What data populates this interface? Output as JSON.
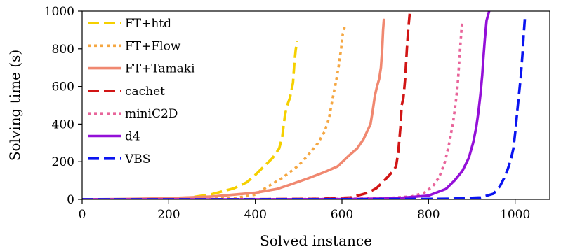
{
  "chart_data": {
    "type": "line",
    "title": "",
    "xlabel": "Solved instance",
    "ylabel": "Solving time (s)",
    "xlim": [
      0,
      1080
    ],
    "ylim": [
      0,
      1000
    ],
    "xticks": [
      0,
      200,
      400,
      600,
      800,
      1000
    ],
    "yticks": [
      0,
      200,
      400,
      600,
      800,
      1000
    ],
    "xtick_labels": [
      "0",
      "200",
      "400",
      "600",
      "800",
      "1000"
    ],
    "ytick_labels": [
      "0",
      "200",
      "400",
      "600",
      "800",
      "1000"
    ],
    "grid": false,
    "legend_position": "top-left",
    "series": [
      {
        "name": "FT+htd",
        "color": "#f5d000",
        "dash": "dashed",
        "points": [
          [
            0,
            0
          ],
          [
            100,
            1
          ],
          [
            200,
            4
          ],
          [
            250,
            10
          ],
          [
            300,
            28
          ],
          [
            350,
            58
          ],
          [
            380,
            90
          ],
          [
            400,
            130
          ],
          [
            420,
            175
          ],
          [
            440,
            220
          ],
          [
            455,
            270
          ],
          [
            462,
            330
          ],
          [
            468,
            440
          ],
          [
            472,
            490
          ],
          [
            480,
            540
          ],
          [
            487,
            620
          ],
          [
            490,
            720
          ],
          [
            493,
            790
          ],
          [
            496,
            840
          ]
        ]
      },
      {
        "name": "FT+Flow",
        "color": "#f5a742",
        "dash": "dotted",
        "points": [
          [
            0,
            0
          ],
          [
            200,
            2
          ],
          [
            350,
            6
          ],
          [
            400,
            25
          ],
          [
            430,
            70
          ],
          [
            460,
            110
          ],
          [
            500,
            180
          ],
          [
            520,
            230
          ],
          [
            545,
            300
          ],
          [
            560,
            360
          ],
          [
            570,
            430
          ],
          [
            578,
            530
          ],
          [
            585,
            610
          ],
          [
            592,
            700
          ],
          [
            598,
            800
          ],
          [
            602,
            880
          ],
          [
            608,
            930
          ]
        ]
      },
      {
        "name": "FT+Tamaki",
        "color": "#f08870",
        "dash": "solid",
        "points": [
          [
            0,
            0
          ],
          [
            100,
            2
          ],
          [
            200,
            6
          ],
          [
            300,
            15
          ],
          [
            400,
            35
          ],
          [
            450,
            55
          ],
          [
            480,
            78
          ],
          [
            520,
            110
          ],
          [
            560,
            145
          ],
          [
            590,
            175
          ],
          [
            615,
            230
          ],
          [
            635,
            270
          ],
          [
            650,
            320
          ],
          [
            660,
            370
          ],
          [
            666,
            400
          ],
          [
            671,
            470
          ],
          [
            676,
            550
          ],
          [
            681,
            600
          ],
          [
            686,
            640
          ],
          [
            690,
            700
          ],
          [
            693,
            800
          ],
          [
            695,
            900
          ],
          [
            697,
            960
          ]
        ]
      },
      {
        "name": "cachet",
        "color": "#d11515",
        "dash": "dashed",
        "points": [
          [
            0,
            0
          ],
          [
            200,
            0
          ],
          [
            400,
            1
          ],
          [
            550,
            3
          ],
          [
            620,
            10
          ],
          [
            660,
            35
          ],
          [
            680,
            60
          ],
          [
            700,
            105
          ],
          [
            718,
            150
          ],
          [
            725,
            175
          ],
          [
            730,
            250
          ],
          [
            735,
            380
          ],
          [
            738,
            500
          ],
          [
            742,
            540
          ],
          [
            746,
            640
          ],
          [
            750,
            800
          ],
          [
            753,
            900
          ],
          [
            757,
            1000
          ]
        ]
      },
      {
        "name": "miniC2D",
        "color": "#e8649a",
        "dash": "dotted",
        "points": [
          [
            0,
            0
          ],
          [
            300,
            0
          ],
          [
            600,
            2
          ],
          [
            700,
            6
          ],
          [
            760,
            15
          ],
          [
            790,
            35
          ],
          [
            810,
            70
          ],
          [
            825,
            120
          ],
          [
            838,
            200
          ],
          [
            848,
            300
          ],
          [
            856,
            400
          ],
          [
            862,
            500
          ],
          [
            867,
            600
          ],
          [
            870,
            700
          ],
          [
            873,
            800
          ],
          [
            876,
            900
          ],
          [
            878,
            950
          ]
        ]
      },
      {
        "name": "d4",
        "color": "#9410d8",
        "dash": "solid",
        "points": [
          [
            0,
            0
          ],
          [
            300,
            0
          ],
          [
            600,
            1
          ],
          [
            720,
            5
          ],
          [
            800,
            20
          ],
          [
            840,
            55
          ],
          [
            860,
            100
          ],
          [
            878,
            150
          ],
          [
            893,
            220
          ],
          [
            903,
            300
          ],
          [
            910,
            380
          ],
          [
            915,
            460
          ],
          [
            920,
            560
          ],
          [
            924,
            660
          ],
          [
            927,
            760
          ],
          [
            930,
            850
          ],
          [
            934,
            950
          ],
          [
            940,
            1000
          ]
        ]
      },
      {
        "name": "VBS",
        "color": "#0a14f0",
        "dash": "dashed",
        "points": [
          [
            0,
            0
          ],
          [
            400,
            0
          ],
          [
            700,
            1
          ],
          [
            850,
            3
          ],
          [
            920,
            10
          ],
          [
            950,
            30
          ],
          [
            965,
            70
          ],
          [
            975,
            115
          ],
          [
            983,
            160
          ],
          [
            990,
            210
          ],
          [
            996,
            270
          ],
          [
            1001,
            370
          ],
          [
            1005,
            470
          ],
          [
            1009,
            560
          ],
          [
            1013,
            650
          ],
          [
            1017,
            770
          ],
          [
            1020,
            880
          ],
          [
            1023,
            975
          ]
        ]
      }
    ]
  }
}
